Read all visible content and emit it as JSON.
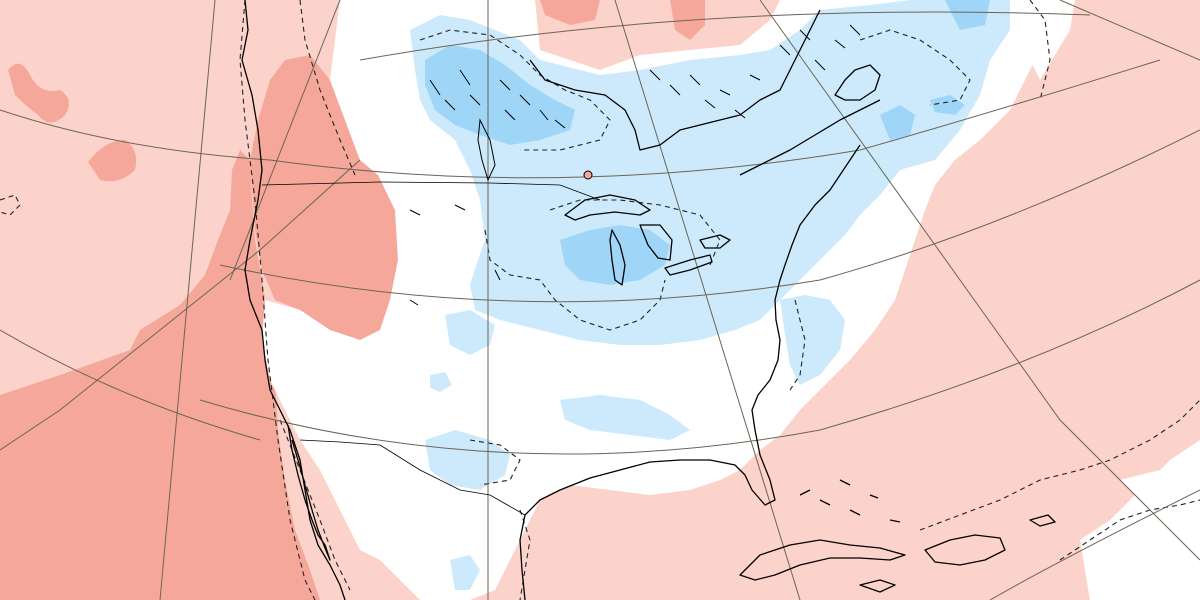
{
  "map": {
    "projection": "conic",
    "region": "North America",
    "colors": {
      "background": "#ffffff",
      "warm_strong": "#f5a89a",
      "warm_light": "#fcd3cb",
      "cool_light": "#cdeafc",
      "cool_strong": "#9fd5f7",
      "coastline": "#000000",
      "graticule": "#6b6455",
      "contour_dashed": "#222222"
    },
    "layers": [
      "anomaly-shading",
      "dashed-contours",
      "coastlines",
      "borders",
      "graticule"
    ],
    "text_labels": []
  }
}
